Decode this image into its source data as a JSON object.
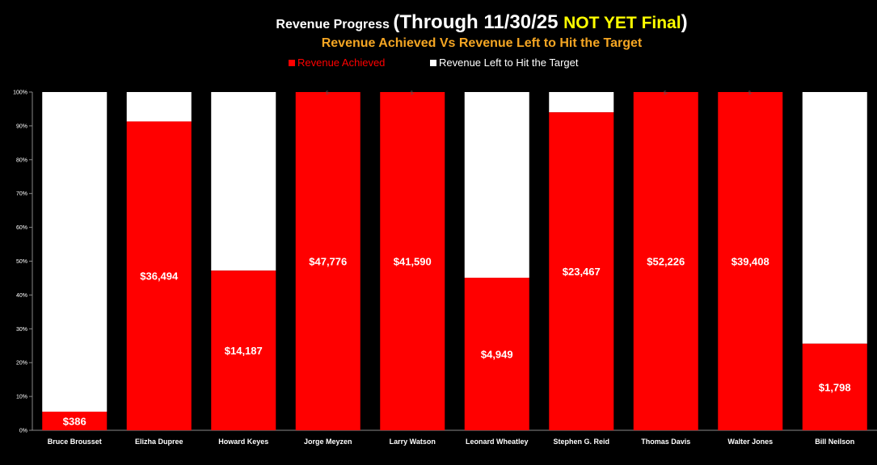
{
  "chart_data": {
    "type": "bar",
    "stacked": true,
    "percent_stacked": true,
    "title_parts": [
      "Revenue Progress ",
      "(Through 11/30/25 ",
      "NOT YET Final",
      ")"
    ],
    "subtitle": "Revenue Achieved Vs Revenue Left to Hit the Target",
    "categories": [
      "Bruce Brousset",
      "Elizha Dupree",
      "Howard Keyes",
      "Jorge Meyzen",
      "Larry Watson",
      "Leonard Wheatley",
      "Stephen G. Reid",
      "Thomas Davis",
      "Walter Jones",
      "Bill Neilson"
    ],
    "series": [
      {
        "name": "Revenue Achieved",
        "color": "#ff0000",
        "percent": [
          5.5,
          91.3,
          47.2,
          100,
          100,
          45.1,
          94.0,
          100,
          100,
          25.6
        ],
        "labels": [
          "$386",
          "$36,494",
          "$14,187",
          "$47,776",
          "$41,590",
          "$4,949",
          "$23,467",
          "$52,226",
          "$39,408",
          "$1,798"
        ]
      },
      {
        "name": "Revenue Left to Hit the Target",
        "color": "#ffffff",
        "percent": [
          94.5,
          8.7,
          52.8,
          0,
          0,
          54.9,
          6.0,
          0,
          0,
          74.4
        ],
        "labels": [
          "",
          "",
          "",
          "$-",
          "$-",
          "",
          "",
          "$-",
          "$-",
          ""
        ]
      }
    ],
    "y_ticks": [
      "0%",
      "10%",
      "20%",
      "30%",
      "40%",
      "50%",
      "60%",
      "70%",
      "80%",
      "90%",
      "100%"
    ],
    "ylim": [
      0,
      100
    ],
    "legend_position": "top"
  },
  "colors": {
    "background": "#000000",
    "achieved": "#ff0000",
    "left": "#ffffff",
    "title": "#ffffff",
    "highlight": "#ffff00",
    "subtitle": "#f5a623"
  }
}
